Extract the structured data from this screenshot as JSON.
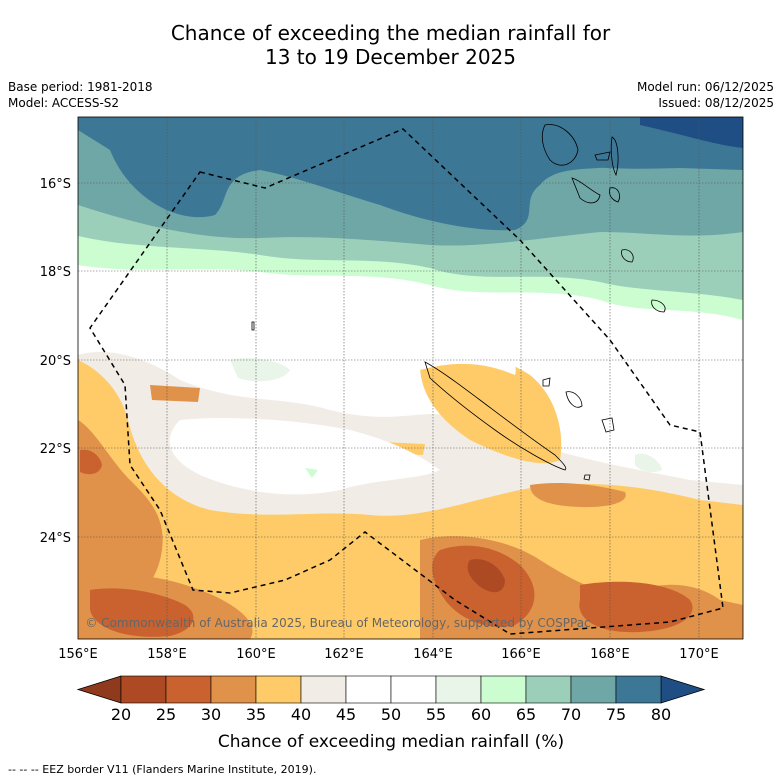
{
  "title": {
    "line1": "Chance of exceeding the median rainfall for",
    "line2": "13 to 19 December 2025"
  },
  "meta": {
    "base_period": "Base period: 1981-2018",
    "model": "Model: ACCESS-S2",
    "model_run": "Model run: 06/12/2025",
    "issued": "Issued: 08/12/2025"
  },
  "axes": {
    "lat_labels": [
      "16°S",
      "18°S",
      "20°S",
      "22°S",
      "24°S"
    ],
    "lon_labels": [
      "156°E",
      "158°E",
      "160°E",
      "162°E",
      "164°E",
      "166°E",
      "168°E",
      "170°E"
    ]
  },
  "copyright": "© Commonwealth of Australia 2025, Bureau of Meteorology, supported by COSPPac",
  "colorbar": {
    "title": "Chance of exceeding median rainfall (%)",
    "tick_labels": [
      "20",
      "25",
      "30",
      "35",
      "40",
      "45",
      "50",
      "55",
      "60",
      "65",
      "70",
      "75",
      "80"
    ],
    "colors": [
      "#ad4a24",
      "#c9622f",
      "#e0924a",
      "#fecb68",
      "#f1ece6",
      "#ffffff",
      "#ffffff",
      "#e9f5e8",
      "#cbfdd1",
      "#9ccfb9",
      "#6fa6a6",
      "#3d7796"
    ],
    "low_extend_color": "#8f3a1c",
    "high_extend_color": "#1e4e84"
  },
  "footer": "-- -- -- EEZ border V11 (Flanders Marine Institute, 2019)."
}
